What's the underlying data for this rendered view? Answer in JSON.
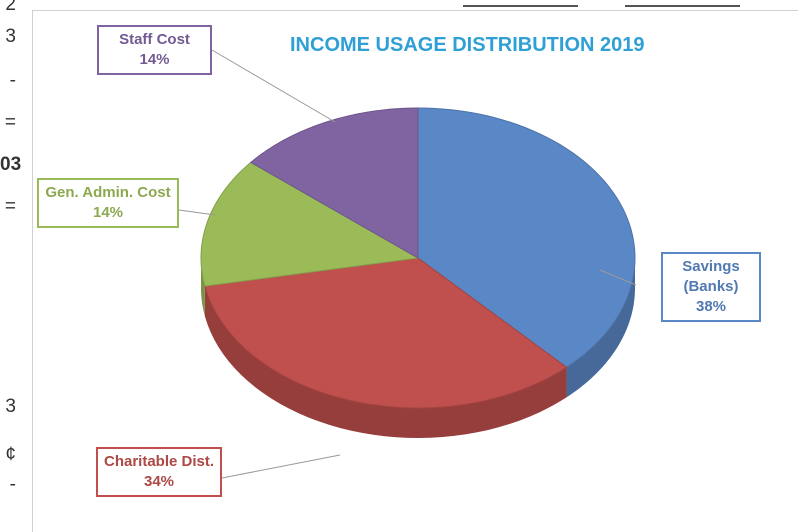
{
  "chart_data": {
    "type": "pie",
    "title": "INCOME USAGE DISTRIBUTION 2019",
    "categories": [
      "Savings (Banks)",
      "Charitable Dist.",
      "Gen. Admin. Cost",
      "Staff Cost"
    ],
    "values": [
      38,
      34,
      14,
      14
    ],
    "value_labels": [
      "38%",
      "34%",
      "14%",
      "14%"
    ],
    "colors": [
      "#5a87c6",
      "#c0504d",
      "#9bbb59",
      "#8064a2"
    ],
    "three_d": true
  },
  "page": {
    "left_margin_text": [
      "2",
      "3",
      "-",
      "=",
      "03",
      "=",
      "3",
      "¢",
      "-"
    ]
  }
}
